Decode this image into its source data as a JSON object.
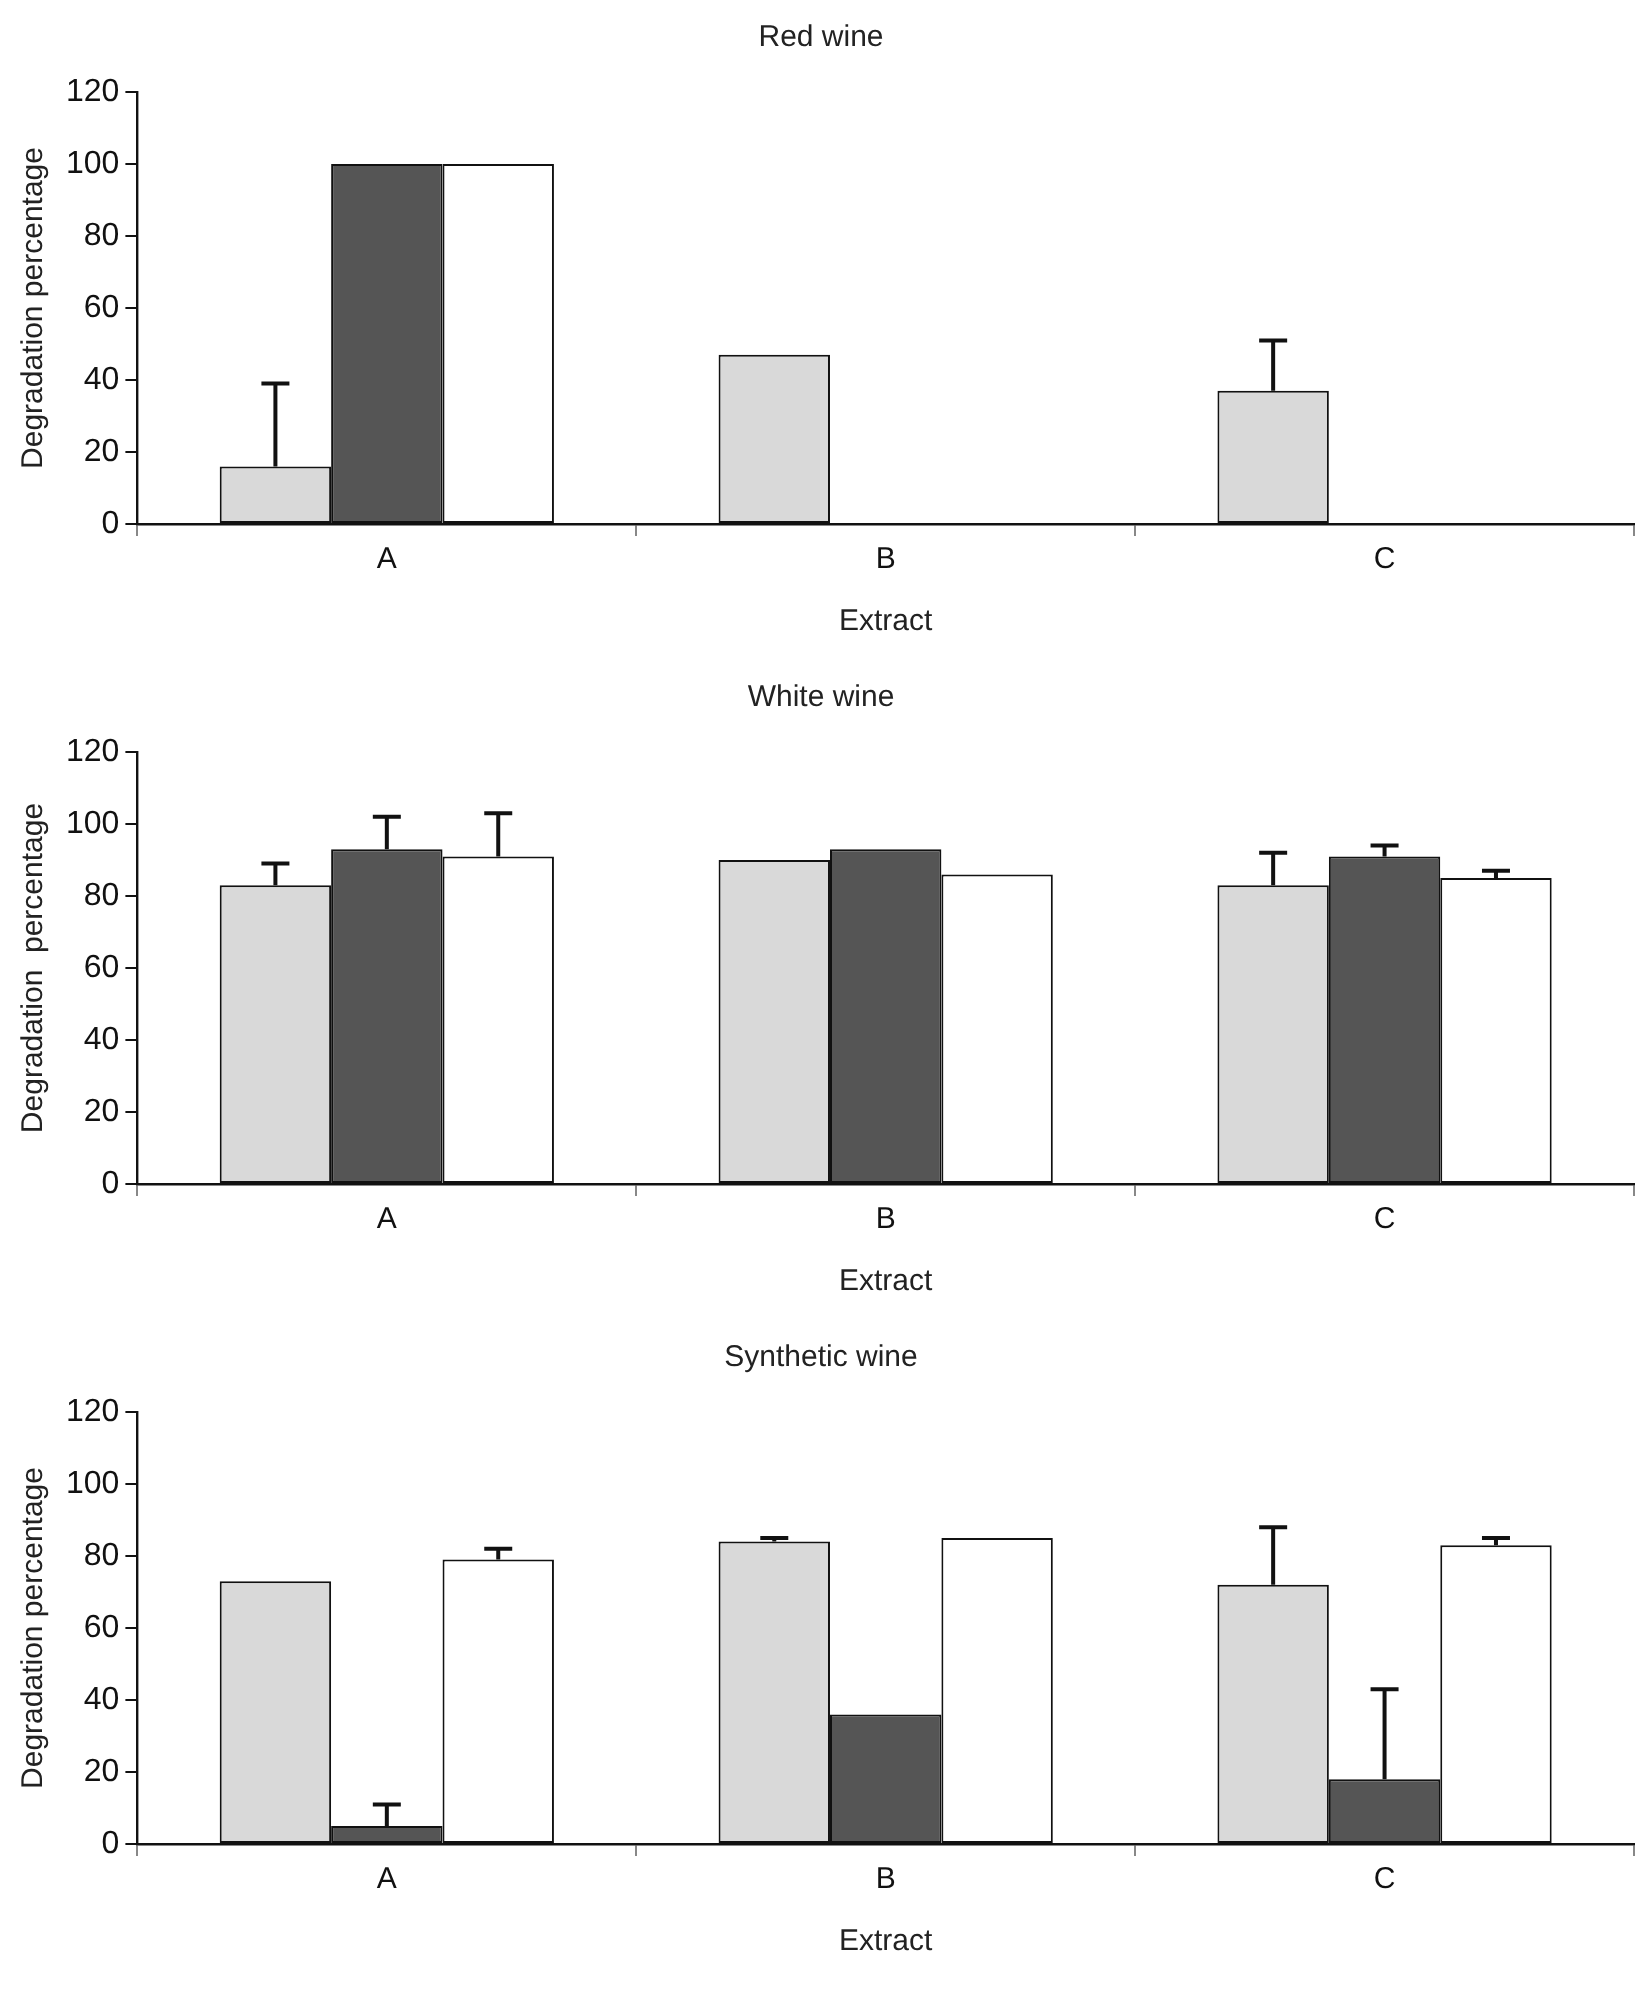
{
  "chart_data": [
    {
      "type": "bar",
      "title": "Red wine",
      "xlabel": "Extract",
      "ylabel": "Degradation percentage",
      "categories": [
        "A",
        "B",
        "C"
      ],
      "ylim": [
        0,
        120
      ],
      "yticks": [
        0,
        20,
        40,
        60,
        80,
        100,
        120
      ],
      "grid": false,
      "legend": false,
      "series": [
        {
          "color": "#d9d9d9",
          "values": [
            16,
            47,
            37
          ],
          "errors": [
            [
              16,
              39
            ],
            null,
            [
              37,
              51
            ]
          ]
        },
        {
          "color": "#555555",
          "values": [
            100,
            0,
            0
          ],
          "errors": [
            null,
            null,
            null
          ]
        },
        {
          "color": "#ffffff",
          "values": [
            100,
            0,
            0
          ],
          "errors": [
            null,
            null,
            null
          ]
        }
      ]
    },
    {
      "type": "bar",
      "title": "White wine",
      "xlabel": "Extract",
      "ylabel": "Degradation  percentage",
      "categories": [
        "A",
        "B",
        "C"
      ],
      "ylim": [
        0,
        120
      ],
      "yticks": [
        0,
        20,
        40,
        60,
        80,
        100,
        120
      ],
      "grid": false,
      "legend": false,
      "series": [
        {
          "color": "#d9d9d9",
          "values": [
            83,
            90,
            83
          ],
          "errors": [
            [
              83,
              89
            ],
            null,
            [
              83,
              92
            ]
          ]
        },
        {
          "color": "#555555",
          "values": [
            93,
            93,
            91
          ],
          "errors": [
            [
              93,
              102
            ],
            null,
            [
              91,
              94
            ]
          ]
        },
        {
          "color": "#ffffff",
          "values": [
            91,
            86,
            85
          ],
          "errors": [
            [
              91,
              103
            ],
            null,
            [
              85,
              87
            ]
          ]
        }
      ]
    },
    {
      "type": "bar",
      "title": "Synthetic wine",
      "xlabel": "Extract",
      "ylabel": "Degradation percentage",
      "categories": [
        "A",
        "B",
        "C"
      ],
      "ylim": [
        0,
        120
      ],
      "yticks": [
        0,
        20,
        40,
        60,
        80,
        100,
        120
      ],
      "grid": false,
      "legend": false,
      "series": [
        {
          "color": "#d9d9d9",
          "values": [
            73,
            84,
            72
          ],
          "errors": [
            null,
            [
              84,
              85
            ],
            [
              72,
              88
            ]
          ]
        },
        {
          "color": "#555555",
          "values": [
            5,
            36,
            18
          ],
          "errors": [
            [
              5,
              11
            ],
            null,
            [
              18,
              43
            ]
          ]
        },
        {
          "color": "#ffffff",
          "values": [
            79,
            85,
            83
          ],
          "errors": [
            [
              79,
              82
            ],
            null,
            [
              83,
              85
            ]
          ]
        }
      ]
    }
  ]
}
